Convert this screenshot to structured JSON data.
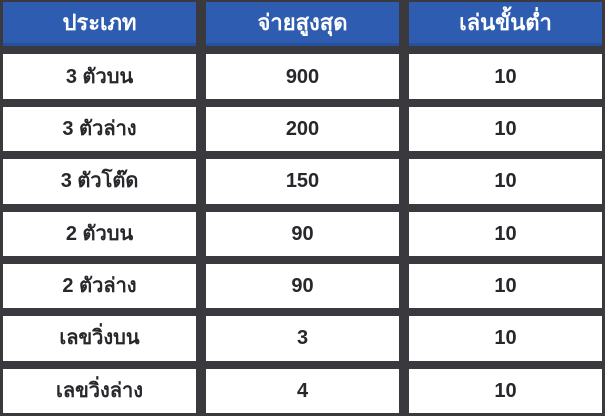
{
  "table": {
    "headers": {
      "type": "ประเภท",
      "max_payout": "จ่ายสูงสุด",
      "min_play": "เล่นขั้นต่ำ"
    },
    "rows": [
      {
        "type": "3 ตัวบน",
        "max_payout": "900",
        "min_play": "10"
      },
      {
        "type": "3 ตัวล่าง",
        "max_payout": "200",
        "min_play": "10"
      },
      {
        "type": "3 ตัวโต๊ด",
        "max_payout": "150",
        "min_play": "10"
      },
      {
        "type": "2 ตัวบน",
        "max_payout": "90",
        "min_play": "10"
      },
      {
        "type": "2 ตัวล่าง",
        "max_payout": "90",
        "min_play": "10"
      },
      {
        "type": "เลขวิ่งบน",
        "max_payout": "3",
        "min_play": "10"
      },
      {
        "type": "เลขวิ่งล่าง",
        "max_payout": "4",
        "min_play": "10"
      }
    ],
    "colors": {
      "header_bg": "#2e5cb1",
      "header_border": "#27519c",
      "header_text": "#ffffff",
      "frame": "#3a3a3e",
      "cell_bg": "#ffffff",
      "cell_text": "#26282b"
    }
  }
}
